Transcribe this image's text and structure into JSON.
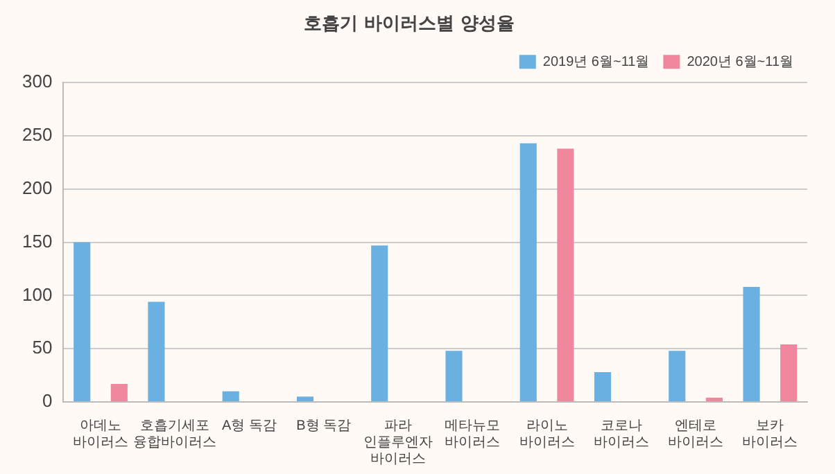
{
  "chart_data": {
    "type": "bar",
    "title": "호흡기 바이러스별 양성율",
    "categories": [
      "아데노\n바이러스",
      "호흡기세포\n융합바이러스",
      "A형 독감",
      "B형 독감",
      "파라\n인플루엔자\n바이러스",
      "메타뉴모\n바이러스",
      "라이노\n바이러스",
      "코로나\n바이러스",
      "엔테로\n바이러스",
      "보카\n바이러스"
    ],
    "series": [
      {
        "name": "2019년 6월~11월",
        "color": "#6ab0e0",
        "values": [
          150,
          94,
          10,
          5,
          147,
          48,
          243,
          28,
          48,
          108
        ]
      },
      {
        "name": "2020년 6월~11월",
        "color": "#f0879f",
        "values": [
          17,
          0,
          0,
          0,
          0,
          0,
          238,
          0,
          4,
          54
        ]
      }
    ],
    "ylim": [
      0,
      300
    ],
    "yticks": [
      0,
      50,
      100,
      150,
      200,
      250,
      300
    ],
    "grid": "y",
    "legend": "top right"
  }
}
